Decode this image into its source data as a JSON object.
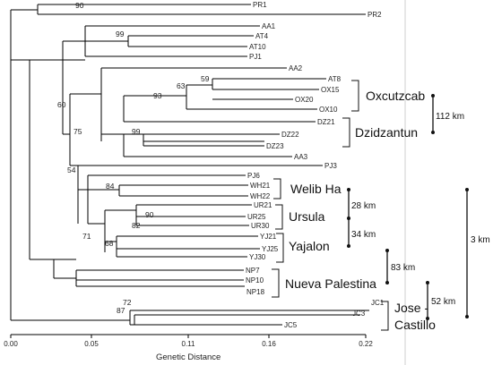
{
  "taxa": [
    "PR1",
    "PR2",
    "AA1",
    "AT4",
    "AT10",
    "PJ1",
    "AA2",
    "AT8",
    "OX15",
    "OX20",
    "OX10",
    "DZ21",
    "DZ22",
    "DZ23",
    "AA3",
    "PJ3",
    "PJ6",
    "WH21",
    "WH22",
    "UR21",
    "UR25",
    "UR30",
    "YJ21",
    "YJ25",
    "YJ30",
    "NP7",
    "NP10",
    "NP18",
    "JC1",
    "JC3",
    "JC5"
  ],
  "bootstrap": [
    "90",
    "99",
    "59",
    "63",
    "93",
    "60",
    "99",
    "75",
    "54",
    "84",
    "90",
    "82",
    "71",
    "68",
    "87",
    "72"
  ],
  "groups": [
    "Oxcutzcab",
    "Dzidzantun",
    "Welib Ha",
    "Ursula",
    "Yajalon",
    "Nueva Palestina",
    "Jose -",
    "Castillo"
  ],
  "distances": [
    "112 km",
    "28 km",
    "34 km",
    "83 km",
    "52 km",
    "3 km"
  ],
  "axis": {
    "title": "Genetic Distance",
    "ticks": [
      {
        "value": 0.0,
        "label": "0.00"
      },
      {
        "value": 0.05,
        "label": "0.05"
      },
      {
        "value": 0.11,
        "label": "0.11"
      },
      {
        "value": 0.16,
        "label": "0.16"
      },
      {
        "value": 0.22,
        "label": "0.22"
      }
    ],
    "range": [
      0,
      0.22
    ]
  }
}
